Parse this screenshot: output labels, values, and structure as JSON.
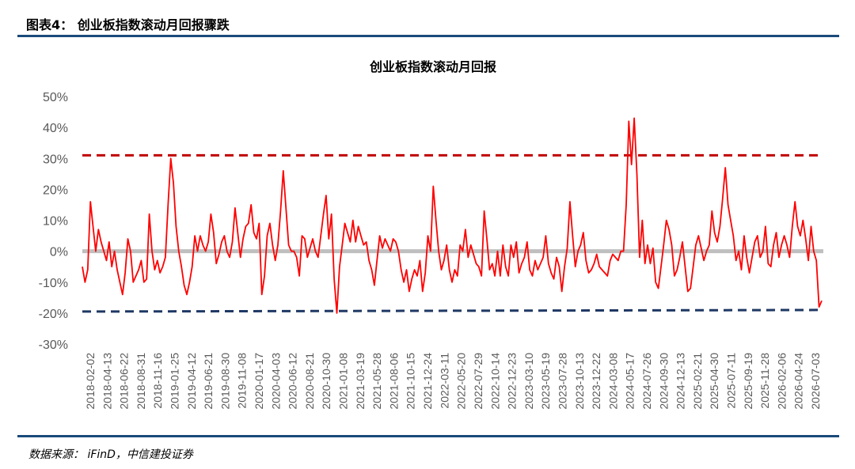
{
  "header": {
    "title": "图表4：   创业板指数滚动月回报骤跌"
  },
  "footer": {
    "source": "数据来源：   iFinD，中信建投证券"
  },
  "chart_data": {
    "type": "line",
    "title": "创业板指数滚动月回报",
    "xlabel": "",
    "ylabel": "",
    "ylim": [
      -30,
      50
    ],
    "y_ticks": [
      "50%",
      "40%",
      "30%",
      "20%",
      "10%",
      "0%",
      "-10%",
      "-20%",
      "-30%"
    ],
    "y_tick_values": [
      50,
      40,
      30,
      20,
      10,
      0,
      -10,
      -20,
      -30
    ],
    "x_tick_labels": [
      "2018-02-02",
      "2018-04-13",
      "2018-06-22",
      "2018-08-31",
      "2018-11-16",
      "2019-01-25",
      "2019-04-12",
      "2019-06-21",
      "2019-08-30",
      "2019-11-08",
      "2020-01-17",
      "2020-04-03",
      "2020-06-12",
      "2020-08-21",
      "2020-10-30",
      "2021-01-08",
      "2021-03-19",
      "2021-05-28",
      "2021-08-06",
      "2021-10-15",
      "2021-12-24",
      "2022-03-11",
      "2022-05-20",
      "2022-07-29",
      "2022-10-14",
      "2022-12-23",
      "2023-03-10",
      "2023-05-19",
      "2023-07-28",
      "2023-10-13",
      "2023-12-22",
      "2024-03-08",
      "2024-05-17",
      "2024-07-26",
      "2024-09-30",
      "2024-12-13",
      "2025-02-21",
      "2025-04-30",
      "2025-07-11",
      "2025-09-19",
      "2025-11-28",
      "2026-02-06",
      "2026-04-24",
      "2026-07-03"
    ],
    "upper_threshold": 31,
    "lower_threshold": -19.5,
    "colors": {
      "line": "#ff0000",
      "upper": "#c00000",
      "lower": "#1f3864",
      "zero": "#bfbfbf"
    },
    "grid": false,
    "series": [
      {
        "values": [
          -5,
          -10,
          -6,
          16,
          8,
          0,
          7,
          3,
          0,
          -3,
          3,
          -5,
          0,
          -6,
          -10,
          -14,
          -7,
          4,
          0,
          -10,
          -8,
          -6,
          -3,
          -10,
          -9,
          12,
          0,
          -6,
          -3,
          -7,
          -5,
          -2,
          15,
          30,
          22,
          8,
          0,
          -5,
          -11,
          -14,
          -10,
          -5,
          5,
          0,
          5,
          2,
          0,
          3,
          12,
          6,
          -4,
          -1,
          3,
          5,
          0,
          -2,
          3,
          14,
          6,
          -2,
          4,
          8,
          9,
          15,
          6,
          4,
          9,
          -14,
          -8,
          5,
          9,
          2,
          -3,
          2,
          13,
          26,
          14,
          2,
          0,
          0,
          -2,
          -8,
          5,
          4,
          -2,
          1,
          4,
          0,
          -2,
          5,
          12,
          18,
          4,
          12,
          -9,
          -20,
          -5,
          2,
          9,
          6,
          3,
          10,
          3,
          8,
          5,
          2,
          3,
          -3,
          -6,
          -11,
          -3,
          5,
          1,
          4,
          2,
          0,
          4,
          3,
          0,
          -6,
          -10,
          -6,
          -13,
          -9,
          -6,
          -8,
          -3,
          -13,
          -7,
          5,
          0,
          21,
          10,
          0,
          -6,
          -3,
          2,
          -6,
          -10,
          -6,
          -8,
          2,
          0,
          7,
          -2,
          2,
          -1,
          -4,
          -5,
          -8,
          13,
          4,
          -6,
          -4,
          -8,
          0,
          -8,
          2,
          -5,
          -8,
          2,
          -2,
          3,
          -7,
          -4,
          -2,
          3,
          -6,
          -8,
          -3,
          -6,
          -4,
          -2,
          5,
          -4,
          -7,
          -9,
          -2,
          -5,
          -13,
          -5,
          1,
          16,
          5,
          -5,
          0,
          2,
          6,
          -3,
          -7,
          -6,
          -4,
          -1,
          -5,
          -6,
          -7,
          -8,
          -3,
          -1,
          -2,
          -3,
          0,
          0,
          15,
          42,
          28,
          43,
          25,
          -2,
          10,
          -4,
          2,
          -4,
          1,
          -10,
          -12,
          -5,
          2,
          10,
          7,
          2,
          -8,
          -6,
          -2,
          3,
          -5,
          -13,
          -12,
          -5,
          2,
          5,
          1,
          -3,
          0,
          2,
          13,
          6,
          3,
          8,
          17,
          27,
          15,
          10,
          5,
          -3,
          0,
          -6,
          5,
          -2,
          -7,
          -2,
          3,
          5,
          -2,
          0,
          8,
          -4,
          -5,
          2,
          6,
          -2,
          2,
          5,
          2,
          -2,
          8,
          16,
          8,
          5,
          10,
          4,
          -3,
          8,
          0,
          -3,
          -18,
          -16
        ]
      }
    ]
  }
}
